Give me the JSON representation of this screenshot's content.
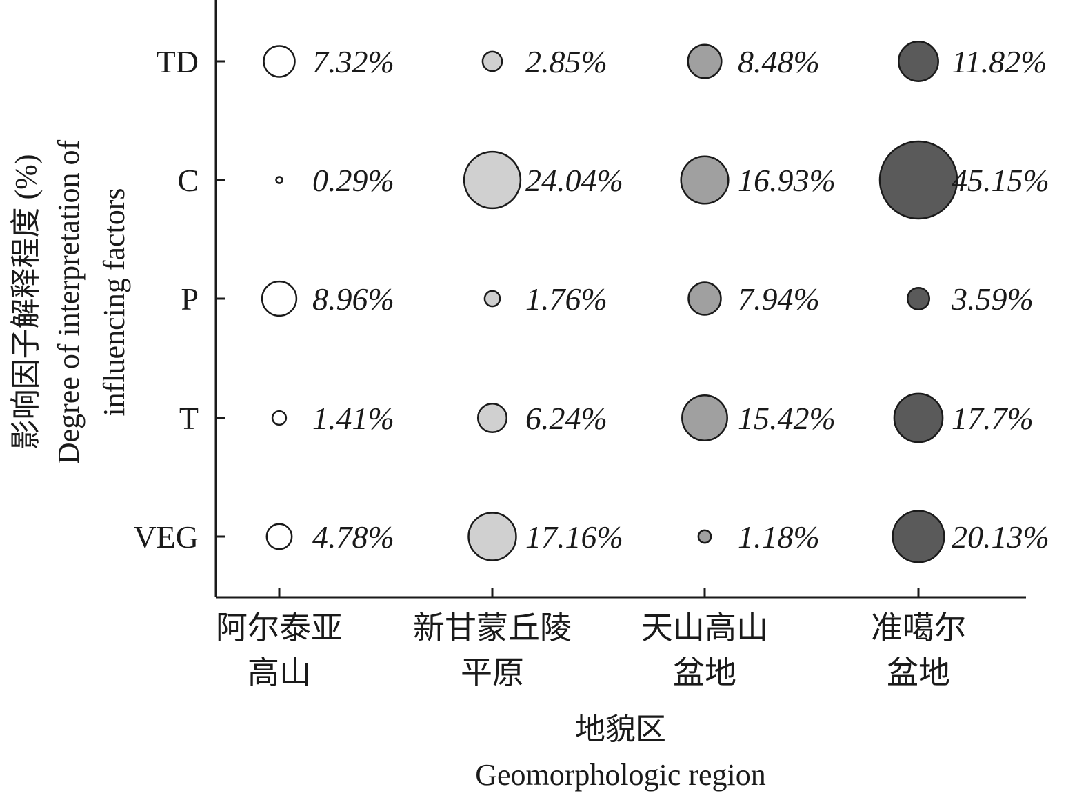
{
  "chart_data": {
    "type": "bubble",
    "xlabel_zh": "地貌区",
    "xlabel_en": "Geomorphologic region",
    "ylabel_zh": "影响因子解释程度 (%)",
    "ylabel_en_line1": "Degree of interpretation of",
    "ylabel_en_line2": "influencing factors",
    "categories": [
      {
        "line1": "阿尔泰亚",
        "line2": "高山",
        "color": "#ffffff"
      },
      {
        "line1": "新甘蒙丘陵",
        "line2": "平原",
        "color": "#d0d0d0"
      },
      {
        "line1": "天山高山",
        "line2": "盆地",
        "color": "#a0a0a0"
      },
      {
        "line1": "准噶尔",
        "line2": "盆地",
        "color": "#5a5a5a"
      }
    ],
    "factors": [
      "TD",
      "C",
      "P",
      "T",
      "VEG"
    ],
    "values": [
      [
        7.32,
        2.85,
        8.48,
        11.82
      ],
      [
        0.29,
        24.04,
        16.93,
        45.15
      ],
      [
        8.96,
        1.76,
        7.94,
        3.59
      ],
      [
        1.41,
        6.24,
        15.42,
        17.7
      ],
      [
        4.78,
        17.16,
        1.18,
        20.13
      ]
    ],
    "labels": [
      [
        "7.32%",
        "2.85%",
        "8.48%",
        "11.82%"
      ],
      [
        "0.29%",
        "24.04%",
        "16.93%",
        "45.15%"
      ],
      [
        "8.96%",
        "1.76%",
        "7.94%",
        "3.59%"
      ],
      [
        "1.41%",
        "6.24%",
        "15.42%",
        "17.7%"
      ],
      [
        "4.78%",
        "17.16%",
        "1.18%",
        "20.13%"
      ]
    ],
    "max_value": 45.15
  }
}
